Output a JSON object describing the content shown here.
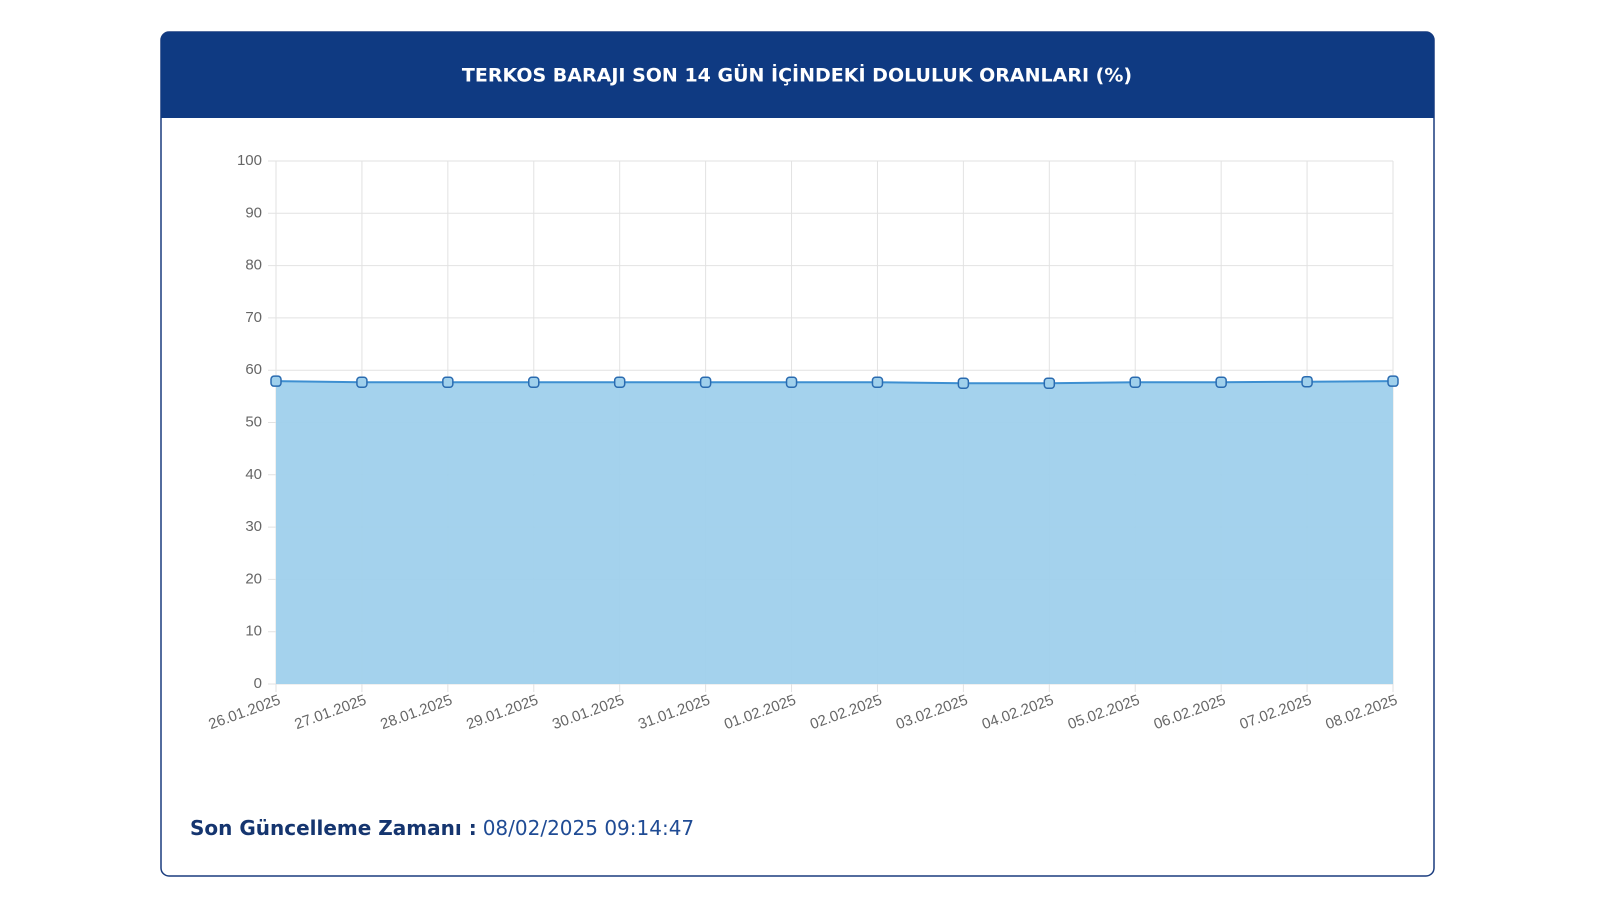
{
  "chart_data": {
    "type": "line",
    "title": "TERKOS BARAJI SON 14 GÜN İÇİNDEKİ DOLULUK ORANLARI (%)",
    "categories": [
      "26.01.2025",
      "27.01.2025",
      "28.01.2025",
      "29.01.2025",
      "30.01.2025",
      "31.01.2025",
      "01.02.2025",
      "02.02.2025",
      "03.02.2025",
      "04.02.2025",
      "05.02.2025",
      "06.02.2025",
      "07.02.2025",
      "08.02.2025"
    ],
    "series": [
      {
        "color": "#3d8fd1",
        "fill_color": "#9fd0ec",
        "values": [
          57.9,
          57.7,
          57.7,
          57.7,
          57.7,
          57.7,
          57.7,
          57.7,
          57.5,
          57.5,
          57.7,
          57.7,
          57.8,
          57.9
        ]
      }
    ],
    "ylim": [
      0,
      100
    ],
    "yticks": [
      0,
      10,
      20,
      30,
      40,
      50,
      60,
      70,
      80,
      90,
      100
    ],
    "grid": true,
    "fill": true
  },
  "footer": {
    "label": "Son Güncelleme Zamanı :",
    "value": "08/02/2025 09:14:47"
  }
}
